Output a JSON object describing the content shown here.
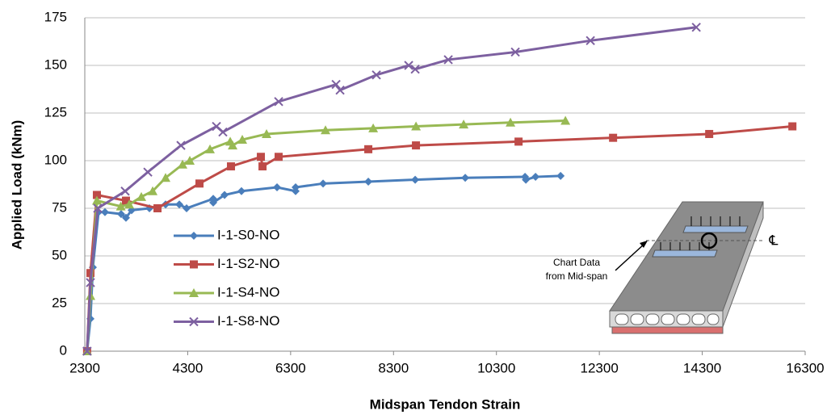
{
  "chart_data": {
    "type": "line",
    "x_label": "Midspan Tendon Strain",
    "y_label": "Applied Load (kNm)",
    "xlim": [
      2300,
      16300
    ],
    "xticks": [
      2300,
      4300,
      6300,
      8300,
      10300,
      12300,
      14300,
      16300
    ],
    "ylim": [
      0,
      175
    ],
    "yticks": [
      0,
      25,
      50,
      75,
      100,
      125,
      150,
      175
    ],
    "grid": true,
    "legend": "left",
    "annotations": [
      "Chart Data",
      "from Mid-span",
      "℄"
    ],
    "series": [
      {
        "name": "I-1-S0-NO",
        "color": "#4a7ebb",
        "marker": "diamond",
        "x": [
          2345,
          2410,
          2457,
          2567,
          2692,
          3006,
          3100,
          3210,
          3556,
          3870,
          4137,
          4278,
          4796,
          4796,
          5016,
          5345,
          6036,
          6397,
          6397,
          6931,
          7810,
          8721,
          9694,
          10856,
          10872,
          11060,
          11547
        ],
        "values": [
          0,
          17,
          44,
          73,
          73,
          72,
          70,
          74,
          75,
          77,
          77,
          75,
          80,
          78,
          82,
          84,
          86,
          84,
          86,
          88,
          89,
          90,
          91,
          91.5,
          90,
          91.5,
          92
        ]
      },
      {
        "name": "I-1-S2-NO",
        "color": "#be4b48",
        "marker": "square",
        "x": [
          2345,
          2410,
          2535,
          3100,
          3713,
          4529,
          5141,
          5722,
          5754,
          6067,
          7810,
          8736,
          10730,
          12567,
          14435,
          16052
        ],
        "values": [
          0,
          41,
          82,
          79,
          75,
          88,
          97,
          102,
          97,
          102,
          106,
          108,
          110,
          112,
          114,
          118
        ]
      },
      {
        "name": "I-1-S4-NO",
        "color": "#98b954",
        "marker": "triangle",
        "x": [
          2345,
          2410,
          2535,
          3000,
          3164,
          3399,
          3619,
          3870,
          4200,
          4341,
          4733,
          5126,
          5173,
          5361,
          5832,
          6978,
          7905,
          8737,
          9663,
          10573,
          11641
        ],
        "values": [
          0,
          29,
          79,
          76,
          77,
          81,
          84,
          91,
          98,
          100,
          106,
          110,
          108,
          111,
          114,
          116,
          117,
          118,
          119,
          120,
          121
        ]
      },
      {
        "name": "I-1-S8-NO",
        "color": "#7d60a0",
        "marker": "x",
        "x": [
          2345,
          2410,
          2551,
          3085,
          3525,
          4168,
          4859,
          4984,
          6068,
          7183,
          7261,
          7967,
          8595,
          8721,
          9364,
          10667,
          12127,
          14184
        ],
        "values": [
          0,
          36,
          75,
          84,
          94,
          108,
          118,
          115,
          131,
          140,
          137,
          145,
          150,
          148,
          153,
          157,
          163,
          170
        ]
      }
    ]
  }
}
